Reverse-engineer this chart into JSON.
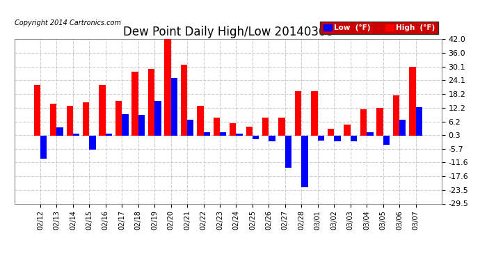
{
  "title": "Dew Point Daily High/Low 20140308",
  "copyright": "Copyright 2014 Cartronics.com",
  "labels": [
    "02/12",
    "02/13",
    "02/14",
    "02/15",
    "02/16",
    "02/17",
    "02/18",
    "02/19",
    "02/20",
    "02/21",
    "02/22",
    "02/23",
    "02/24",
    "02/25",
    "02/26",
    "02/27",
    "02/28",
    "03/01",
    "03/02",
    "03/03",
    "03/04",
    "03/05",
    "03/06",
    "03/07"
  ],
  "high_values": [
    22.0,
    14.0,
    13.0,
    14.5,
    22.0,
    15.0,
    28.0,
    29.0,
    42.0,
    31.0,
    13.0,
    8.0,
    5.5,
    4.0,
    8.0,
    8.0,
    19.5,
    19.5,
    3.0,
    5.0,
    11.5,
    12.0,
    17.5,
    30.0
  ],
  "low_values": [
    -10.0,
    3.5,
    1.0,
    -6.0,
    1.0,
    9.5,
    9.0,
    15.0,
    25.0,
    7.0,
    1.5,
    1.5,
    1.0,
    -1.5,
    -2.5,
    -14.0,
    -22.5,
    -2.0,
    -2.5,
    -2.5,
    1.5,
    -4.0,
    7.0,
    12.5
  ],
  "high_color": "#FF0000",
  "low_color": "#0000FF",
  "bg_color": "#FFFFFF",
  "plot_bg_color": "#FFFFFF",
  "grid_color": "#CCCCCC",
  "ylim": [
    -29.5,
    42.0
  ],
  "yticks": [
    42.0,
    36.0,
    30.1,
    24.1,
    18.2,
    12.2,
    6.2,
    0.3,
    -5.7,
    -11.6,
    -17.6,
    -23.5,
    -29.5
  ],
  "title_fontsize": 12,
  "tick_fontsize": 8,
  "bar_width": 0.4
}
